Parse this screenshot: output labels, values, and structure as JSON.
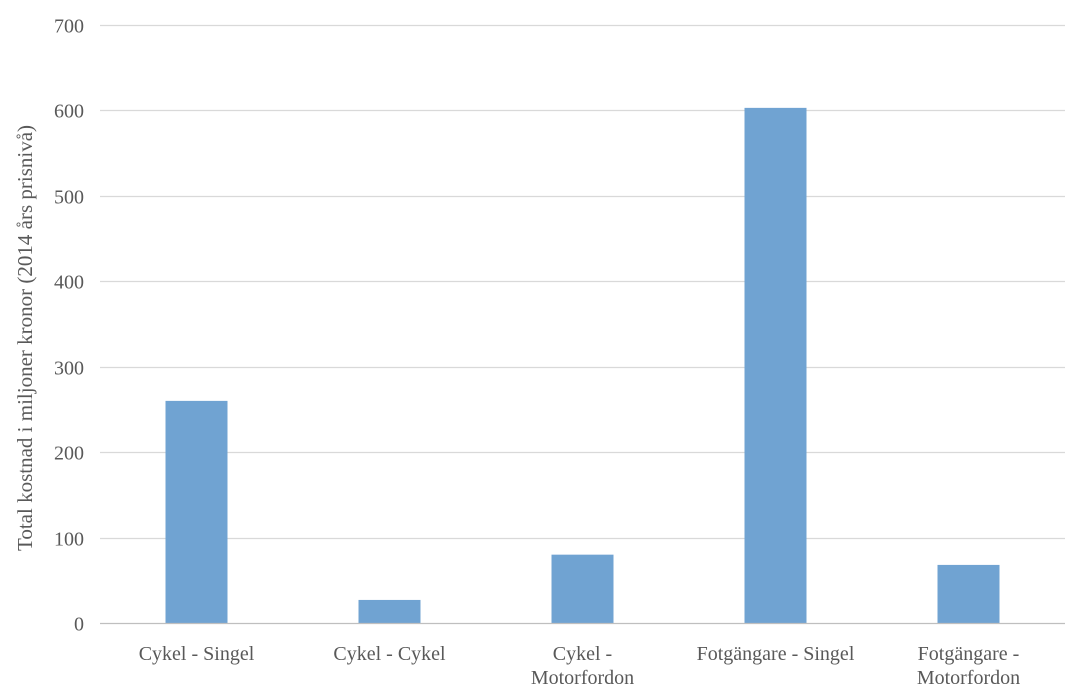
{
  "chart_data": {
    "type": "bar",
    "title": "",
    "xlabel": "",
    "ylabel": "Total kostnad i miljoner kronor (2014 års prisnivå)",
    "categories": [
      [
        "Cykel - Singel"
      ],
      [
        "Cykel - Cykel"
      ],
      [
        "Cykel -",
        "Motorfordon"
      ],
      [
        "Fotgängare - Singel"
      ],
      [
        "Fotgängare -",
        "Motorfordon"
      ]
    ],
    "values": [
      260,
      27,
      80,
      603,
      68
    ],
    "ylim": [
      0,
      700
    ],
    "yticks": [
      0,
      100,
      200,
      300,
      400,
      500,
      600,
      700
    ],
    "grid": true,
    "legend": "none",
    "colors": {
      "bar": "#70A3D2",
      "grid": "#D9D9D9",
      "axis": "#BFBFBF",
      "text": "#595959"
    }
  }
}
